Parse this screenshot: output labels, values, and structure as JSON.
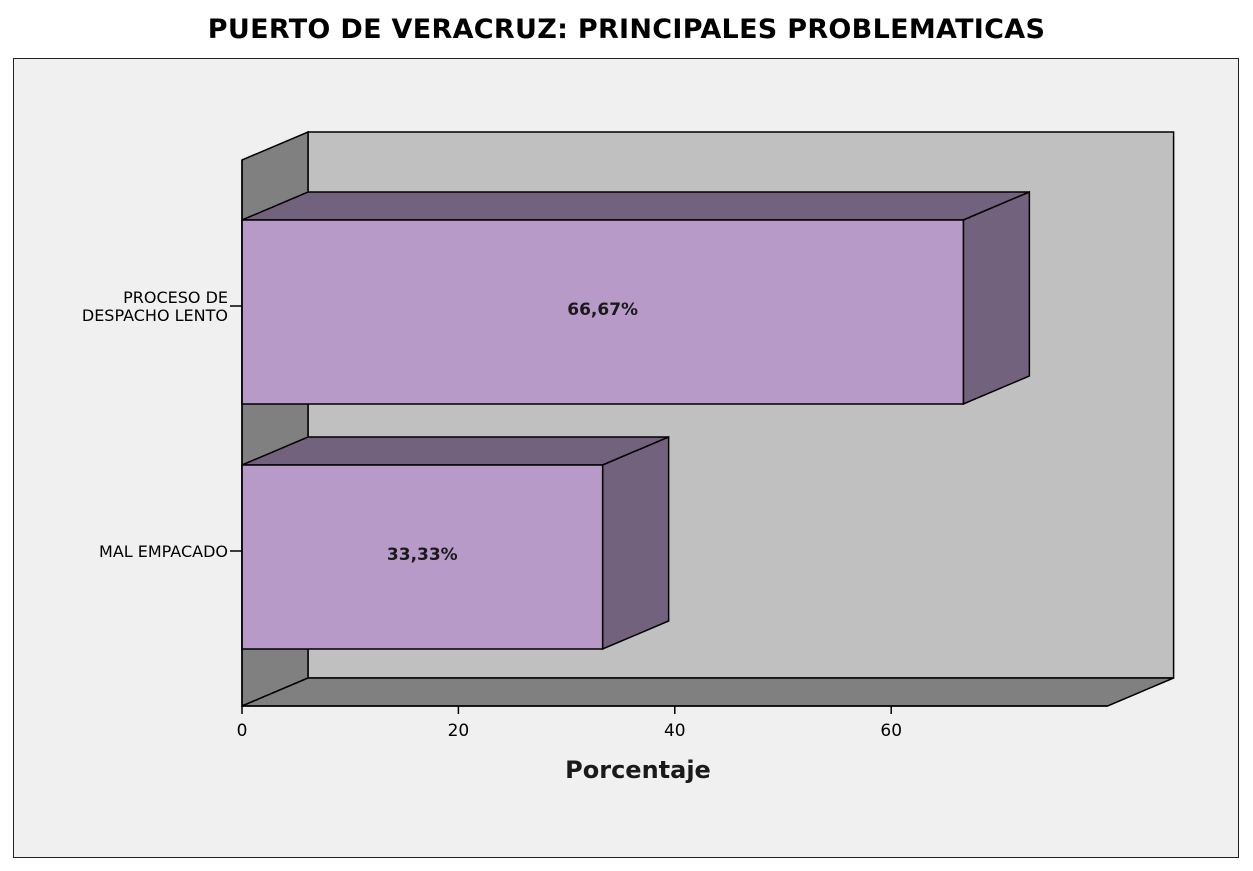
{
  "chart_data": {
    "type": "bar",
    "orientation": "horizontal",
    "title": "PUERTO DE VERACRUZ: PRINCIPALES PROBLEMATICAS",
    "xlabel": "Porcentaje",
    "ylabel": "",
    "categories": [
      [
        "PROCESO DE",
        "DESPACHO LENTO"
      ],
      [
        "MAL EMPACADO"
      ]
    ],
    "values": [
      66.67,
      33.33
    ],
    "data_labels": [
      "66,67%",
      "33,33%"
    ],
    "xlim": [
      0,
      80
    ],
    "xticks": [
      0,
      20,
      40,
      60
    ],
    "xtick_labels": [
      "0",
      "20",
      "40",
      "60"
    ],
    "grid": false,
    "legend": "none",
    "style": "3d",
    "colors": {
      "bar_front": "#b89ac9",
      "bar_side": "#73627d",
      "back_wall": "#c0c0c0",
      "side_wall": "#808080",
      "plot_background": "#f0f0f0"
    }
  }
}
